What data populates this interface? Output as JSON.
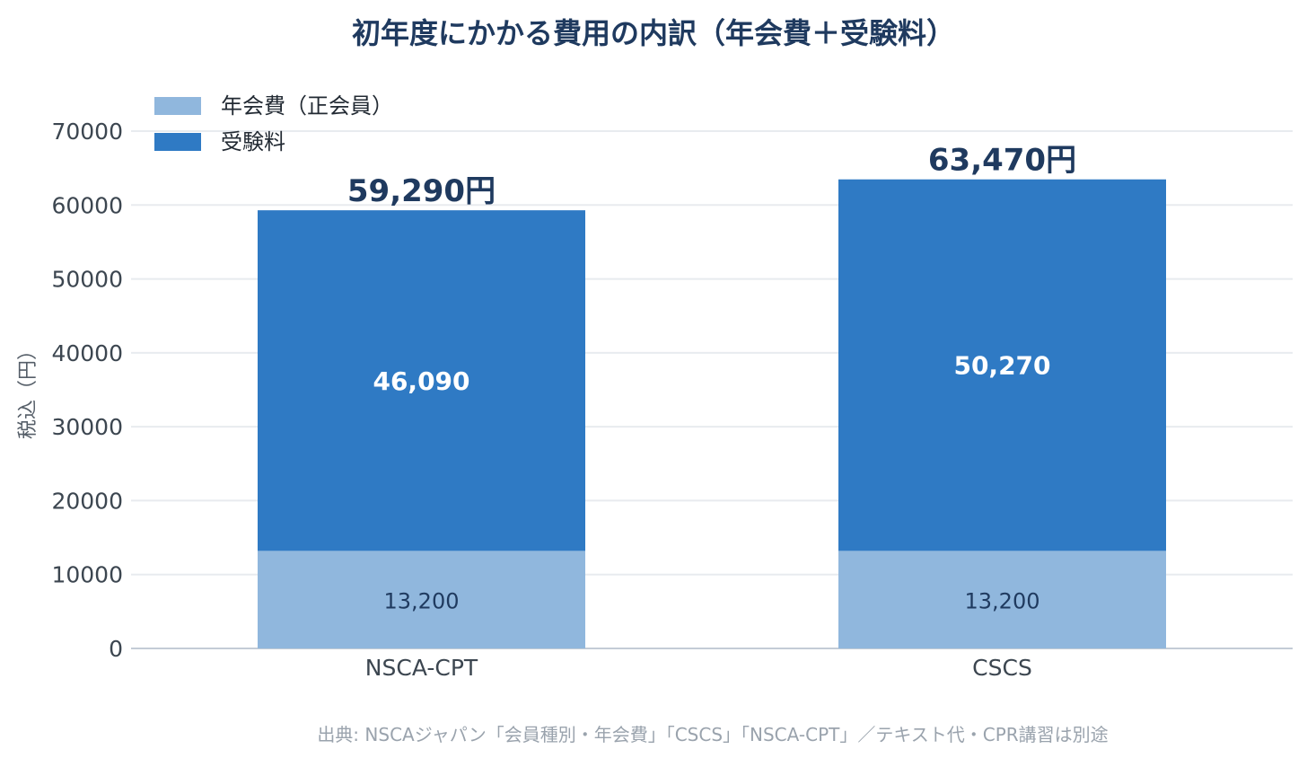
{
  "chart_data": {
    "type": "bar",
    "stacked": true,
    "title": "初年度にかかる費用の内訳（年会費＋受験料）",
    "ylabel": "税込（円）",
    "xlabel": "",
    "categories": [
      "NSCA-CPT",
      "CSCS"
    ],
    "series": [
      {
        "name": "年会費（正会員）",
        "values": [
          13200,
          13200
        ],
        "labels": [
          "13,200",
          "13,200"
        ],
        "color": "#90b7dd"
      },
      {
        "name": "受験料",
        "values": [
          46090,
          50270
        ],
        "labels": [
          "46,090",
          "50,270"
        ],
        "color": "#2f7ac4"
      }
    ],
    "totals": [
      "59,290円",
      "63,470円"
    ],
    "ylim": [
      0,
      70000
    ],
    "yticks": [
      0,
      10000,
      20000,
      30000,
      40000,
      50000,
      60000,
      70000
    ],
    "grid": true,
    "legend": "top-left",
    "source": "出典: NSCAジャパン「会員種別・年会費」「CSCS」「NSCA-CPT」／テキスト代・CPR講習は別途"
  }
}
